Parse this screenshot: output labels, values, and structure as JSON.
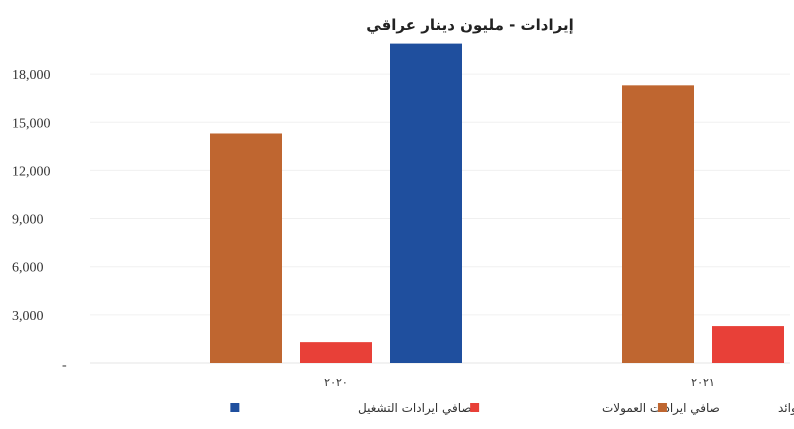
{
  "chart_data": {
    "type": "bar",
    "title": "إيرادات - مليون دينار عراقي",
    "categories": [
      "٢٠٢٠",
      "٢٠٢١"
    ],
    "series": [
      {
        "name": "صافي ايرادات الفوائد",
        "color": "#bf6630",
        "values": [
          14300,
          17300
        ]
      },
      {
        "name": "صافي ايرادات العمولات",
        "color": "#e84038",
        "values": [
          1300,
          2300
        ]
      },
      {
        "name": "صافي ايرادات التشغيل",
        "color": "#1f4f9e",
        "values": [
          19900,
          null
        ]
      }
    ],
    "ylim": [
      0,
      20000
    ],
    "yticks": [
      3000,
      6000,
      9000,
      12000,
      15000,
      18000
    ],
    "ytick_labels": [
      "3,000",
      "6,000",
      "9,000",
      "12,000",
      "15,000",
      "18,000"
    ],
    "grid": true,
    "legend_position": "bottom"
  }
}
